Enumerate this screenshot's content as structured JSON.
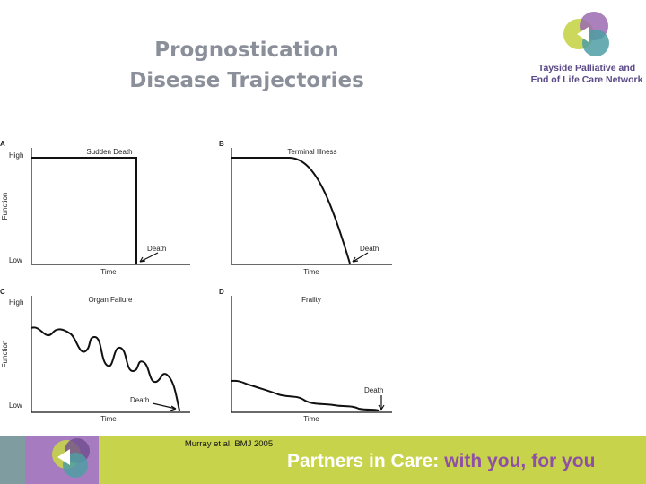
{
  "header": {
    "title": [
      "Prognostication",
      "Disease Trajectories"
    ]
  },
  "logo": {
    "lines": [
      "Tayside Palliative and",
      "End of Life Care Network"
    ]
  },
  "panels": [
    {
      "letter": "A",
      "title": "Sudden Death",
      "y_high": "High",
      "y_low": "Low",
      "y_label": "Function",
      "x_label": "Time",
      "annotation": "Death"
    },
    {
      "letter": "B",
      "title": "Terminal Illness",
      "x_label": "Time",
      "annotation": "Death"
    },
    {
      "letter": "C",
      "title": "Organ Failure",
      "y_high": "High",
      "y_low": "Low",
      "y_label": "Function",
      "x_label": "Time",
      "annotation": "Death"
    },
    {
      "letter": "D",
      "title": "Frailty",
      "x_label": "Time",
      "annotation": "Death"
    }
  ],
  "citation": "Murray et al. BMJ 2005",
  "footer": {
    "parts": [
      "Partners in Care:",
      "with you,",
      "for you"
    ]
  }
}
